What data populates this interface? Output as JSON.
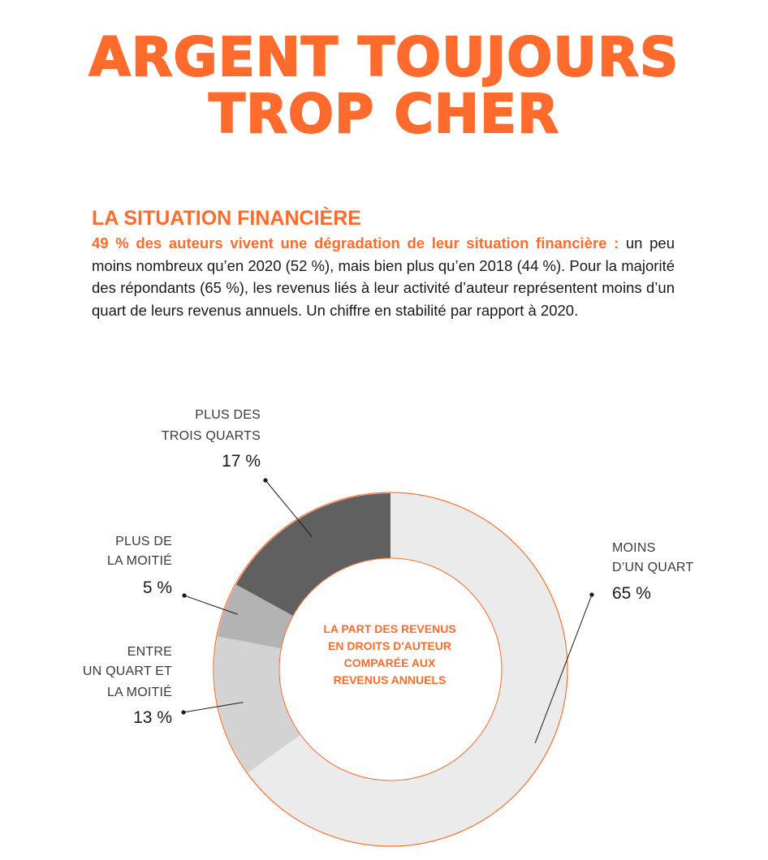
{
  "header": {
    "title_line1": "ARGENT TOUJOURS",
    "title_line2": "TROP CHER"
  },
  "section": {
    "title": "LA SITUATION FINANCIÈRE",
    "lead_strong": "49 % des auteurs vivent une dégradation de leur situation financière :",
    "lead_body": " un peu moins nombreux qu’en 2020 (52 %), mais bien plus qu’en 2018 (44 %). Pour la majorité des répondants (65 %), les revenus liés à leur activité d’auteur représentent moins d’un quart de leurs revenus annuels. Un chiffre en stabilité par rapport à 2020."
  },
  "colors": {
    "accent": "#ff6b2c",
    "ring_outline": "#ff6b2c"
  },
  "chart_data": {
    "type": "pie",
    "donut": true,
    "title": "",
    "center_label": [
      "LA PART DES REVENUS",
      "EN DROITS D'AUTEUR",
      "COMPARÉE AUX",
      "REVENUS ANNUELS"
    ],
    "slices": [
      {
        "label": [
          "MOINS",
          "D’UN QUART"
        ],
        "value": 65,
        "value_label": "65 %",
        "color": "#ebebeb"
      },
      {
        "label": [
          "ENTRE",
          "UN QUART ET",
          "LA MOITIÉ"
        ],
        "value": 13,
        "value_label": "13 %",
        "color": "#d3d3d3"
      },
      {
        "label": [
          "PLUS DE",
          "LA MOITIÉ"
        ],
        "value": 5,
        "value_label": "5 %",
        "color": "#b3b3b3"
      },
      {
        "label": [
          "PLUS DES",
          "TROIS QUARTS"
        ],
        "value": 17,
        "value_label": "17 %",
        "color": "#606060"
      }
    ]
  }
}
